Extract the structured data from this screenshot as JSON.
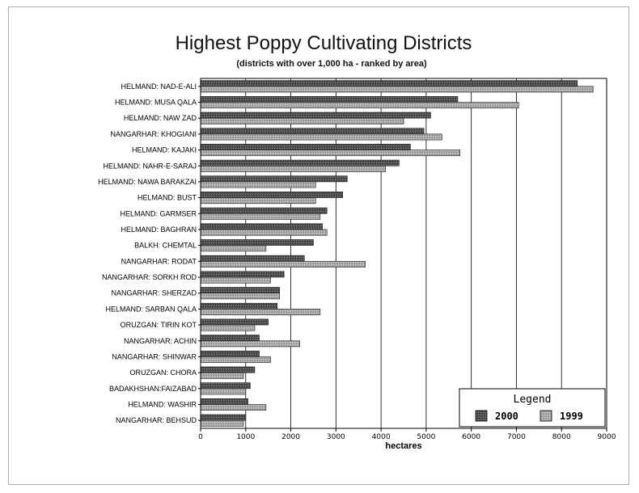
{
  "chart_data": {
    "type": "bar",
    "orientation": "horizontal",
    "title": "Highest Poppy Cultivating Districts",
    "subtitle": "(districts with over 1,000 ha - ranked by area)",
    "xlabel": "hectares",
    "ylabel": "",
    "xlim": [
      0,
      9000
    ],
    "xticks": [
      "0",
      "1000",
      "2000",
      "3000",
      "4000",
      "5000",
      "6000",
      "7000",
      "8000",
      "9000"
    ],
    "grid": "vertical",
    "legend": {
      "title": "Legend",
      "position": "bottom-right"
    },
    "categories": [
      "HELMAND: NAD-E-ALI",
      "HELMAND: MUSA QALA",
      "HELMAND: NAW ZAD",
      "NANGARHAR: KHOGIANI",
      "HELMAND: KAJAKI",
      "HELMAND: NAHR-E-SARAJ",
      "HELMAND: NAWA BARAKZAI",
      "HELMAND: BUST",
      "HELMAND: GARMSER",
      "HELMAND: BAGHRAN",
      "BALKH: CHEMTAL",
      "NANGARHAR: RODAT",
      "NANGARHAR: SORKH ROD",
      "NANGARHAR: SHERZAD",
      "HELMAND: SARBAN QALA",
      "ORUZGAN: TIRIN KOT",
      "NANGARHAR: ACHIN",
      "NANGARHAR: SHINWAR",
      "ORUZGAN: CHORA",
      "BADAKHSHAN:FAIZABAD",
      "HELMAND: WASHIR",
      "NANGARHAR: BEHSUD"
    ],
    "series": [
      {
        "name": "2000",
        "color": "#505050",
        "values": [
          8350,
          5700,
          5100,
          4950,
          4650,
          4400,
          3250,
          3150,
          2800,
          2700,
          2500,
          2300,
          1850,
          1750,
          1700,
          1500,
          1300,
          1300,
          1200,
          1100,
          1050,
          1000
        ]
      },
      {
        "name": "1999",
        "color": "#a8a8a8",
        "values": [
          8700,
          7050,
          4500,
          5350,
          5750,
          4100,
          2550,
          2550,
          2650,
          2800,
          1450,
          3650,
          1550,
          1750,
          2650,
          1200,
          2200,
          1550,
          950,
          1000,
          1450,
          950
        ]
      }
    ]
  }
}
